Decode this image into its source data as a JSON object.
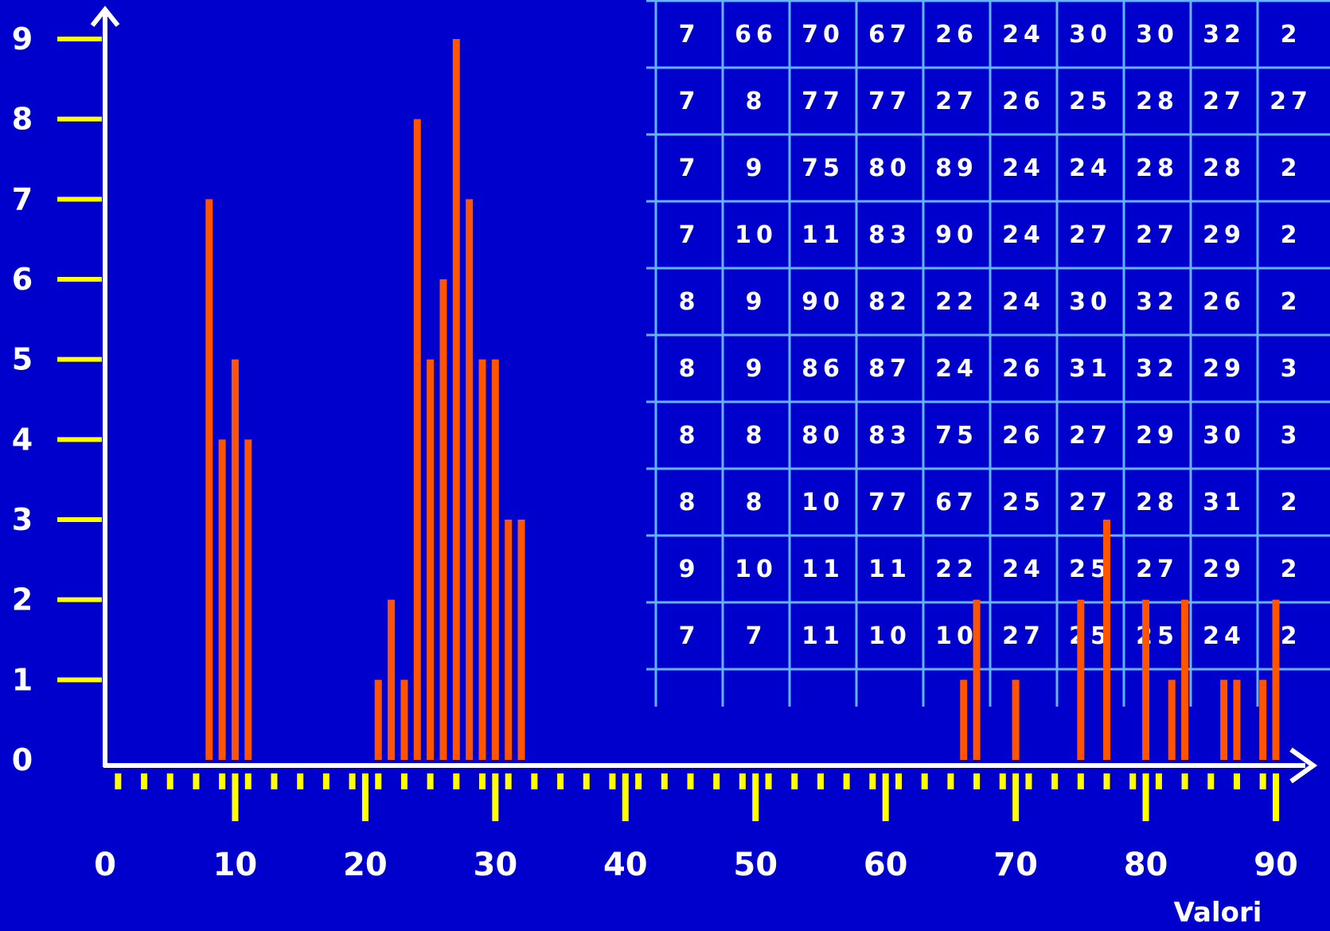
{
  "chart_data": {
    "type": "bar",
    "title": "",
    "xlabel": "Valori",
    "ylabel": "",
    "xlim": [
      0,
      90
    ],
    "ylim": [
      0,
      9
    ],
    "x_ticks": [
      "0",
      "10",
      "20",
      "30",
      "40",
      "50",
      "60",
      "70",
      "80",
      "90"
    ],
    "y_ticks": [
      "0",
      "1",
      "2",
      "3",
      "4",
      "5",
      "6",
      "7",
      "8",
      "9"
    ],
    "grid": false,
    "legend": "none",
    "bar_color": "#ff5500",
    "x": [
      8,
      9,
      10,
      11,
      21,
      22,
      23,
      24,
      25,
      26,
      27,
      28,
      29,
      30,
      31,
      32,
      66,
      67,
      70,
      75,
      77,
      80,
      82,
      83,
      86,
      87,
      89,
      90
    ],
    "values": [
      7,
      4,
      5,
      4,
      1,
      2,
      1,
      8,
      5,
      6,
      9,
      7,
      5,
      5,
      3,
      3,
      1,
      2,
      1,
      2,
      3,
      2,
      1,
      2,
      1,
      1,
      1,
      2
    ]
  },
  "data_table": {
    "rows": [
      [
        "7",
        "66",
        "70",
        "67",
        "26",
        "24",
        "30",
        "30",
        "32",
        "2"
      ],
      [
        "7",
        "8",
        "77",
        "77",
        "27",
        "26",
        "25",
        "28",
        "27",
        "27"
      ],
      [
        "7",
        "9",
        "75",
        "80",
        "89",
        "24",
        "24",
        "28",
        "28",
        "2"
      ],
      [
        "7",
        "10",
        "11",
        "83",
        "90",
        "24",
        "27",
        "27",
        "29",
        "2"
      ],
      [
        "8",
        "9",
        "90",
        "82",
        "22",
        "24",
        "30",
        "32",
        "26",
        "2"
      ],
      [
        "8",
        "9",
        "86",
        "87",
        "24",
        "26",
        "31",
        "32",
        "29",
        "3"
      ],
      [
        "8",
        "8",
        "80",
        "83",
        "75",
        "26",
        "27",
        "29",
        "30",
        "3"
      ],
      [
        "8",
        "8",
        "10",
        "77",
        "67",
        "25",
        "27",
        "28",
        "31",
        "2"
      ],
      [
        "9",
        "10",
        "11",
        "11",
        "22",
        "24",
        "25",
        "27",
        "29",
        "2"
      ],
      [
        "7",
        "7",
        "11",
        "10",
        "10",
        "27",
        "25",
        "25",
        "24",
        "2"
      ]
    ]
  },
  "colors": {
    "background": "#0000cc",
    "axis": "#ffffff",
    "tick_marks": "#ffff00",
    "table_lines": "#66b3ff",
    "text": "#ffffff"
  }
}
